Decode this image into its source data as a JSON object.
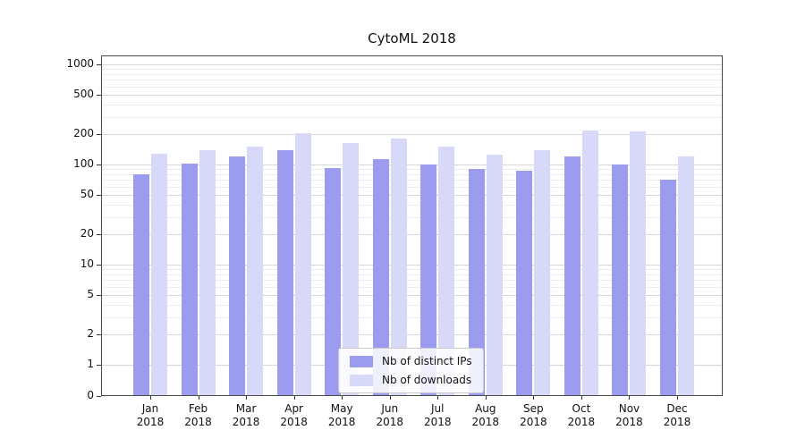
{
  "chart_data": {
    "type": "bar",
    "title": "CytoML 2018",
    "scale": "symlog",
    "grid": true,
    "legend_position": "lower center inside",
    "categories": [
      "Jan",
      "Feb",
      "Mar",
      "Apr",
      "May",
      "Jun",
      "Jul",
      "Aug",
      "Sep",
      "Oct",
      "Nov",
      "Dec"
    ],
    "year_label": "2018",
    "yticks": [
      1000,
      500,
      200,
      100,
      50,
      20,
      10,
      5,
      2,
      1,
      0
    ],
    "ylim": [
      0,
      1000
    ],
    "series": [
      {
        "name": "Nb of distinct IPs",
        "color": "#9b9bef",
        "values": [
          80,
          103,
          120,
          140,
          93,
          113,
          99,
          90,
          87,
          120,
          101,
          70
        ]
      },
      {
        "name": "Nb of downloads",
        "color": "#d8d8f8",
        "values": [
          128,
          138,
          150,
          205,
          163,
          182,
          150,
          125,
          140,
          220,
          215,
          120
        ]
      }
    ]
  }
}
